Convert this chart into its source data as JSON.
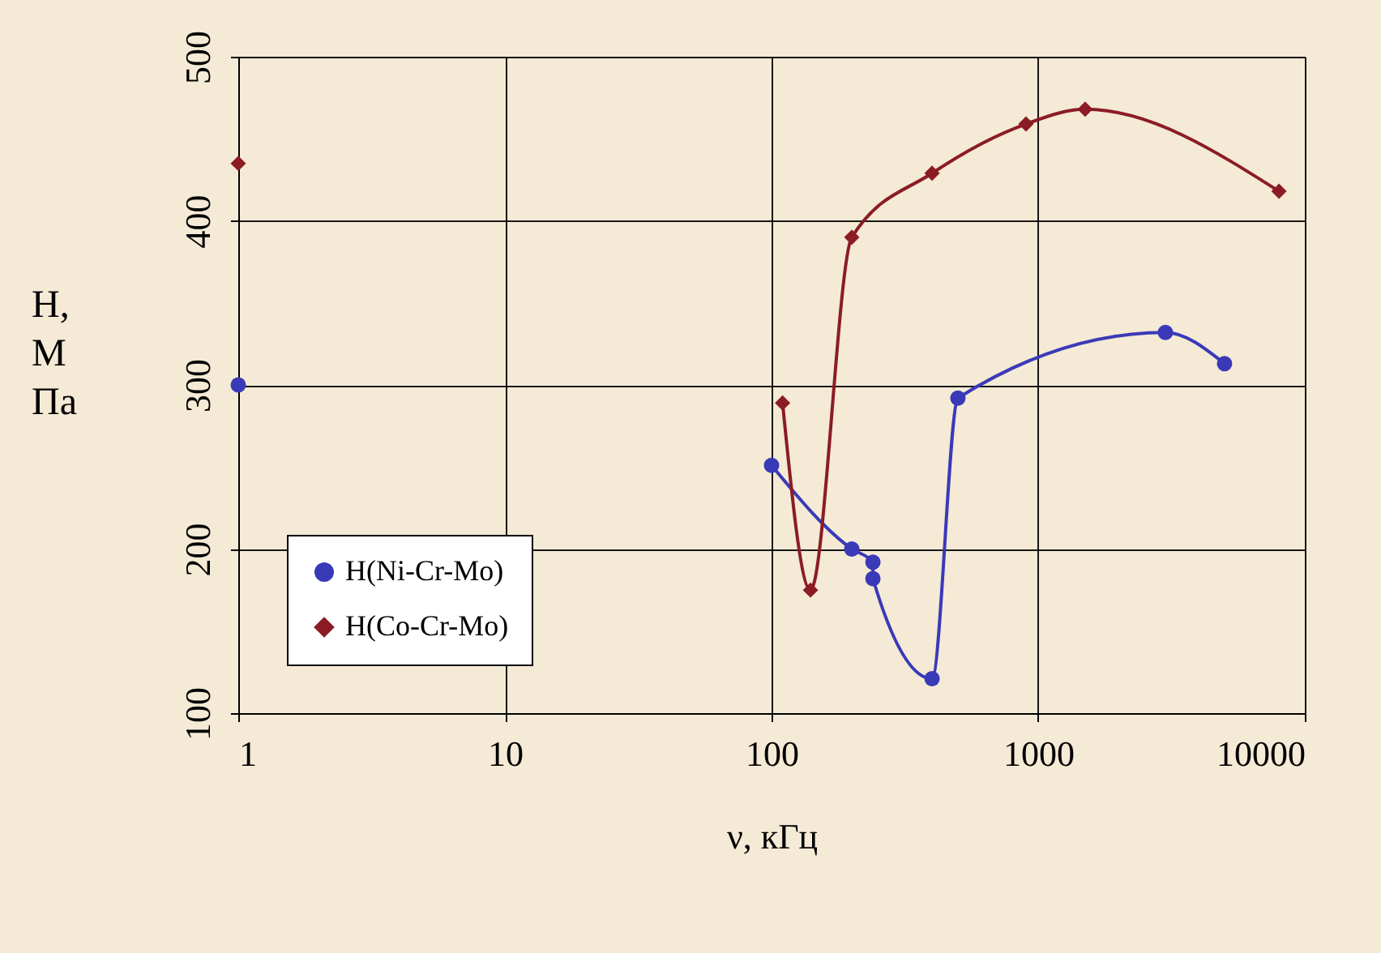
{
  "chart_data": {
    "type": "line",
    "xlabel": "ν, кГц",
    "ylabel": "Н, М Па",
    "log": "x",
    "xlim": [
      1,
      10000
    ],
    "xticks": [
      1,
      10,
      100,
      1000,
      10000
    ],
    "ylim": [
      100,
      500
    ],
    "yticks": [
      100,
      200,
      300,
      400,
      500
    ],
    "grid": true,
    "legend": "bottom left",
    "line_style": "solid",
    "series": [
      {
        "name": "H(Ni-Cr-Mo)",
        "color": "#3a3ab8",
        "marker": "circle",
        "x": [
          1,
          10,
          100,
          200,
          240,
          240,
          400,
          500,
          3000,
          5000
        ],
        "values": [
          300,
          null,
          251,
          200,
          192,
          182,
          121,
          292,
          332,
          313
        ]
      },
      {
        "name": "H(Co-Cr-Mo)",
        "color": "#8b1c24",
        "marker": "diamond",
        "x": [
          1,
          10,
          110,
          140,
          200,
          400,
          900,
          1500,
          8000
        ],
        "values": [
          435,
          null,
          289,
          175,
          390,
          429,
          459,
          468,
          418
        ]
      }
    ]
  }
}
